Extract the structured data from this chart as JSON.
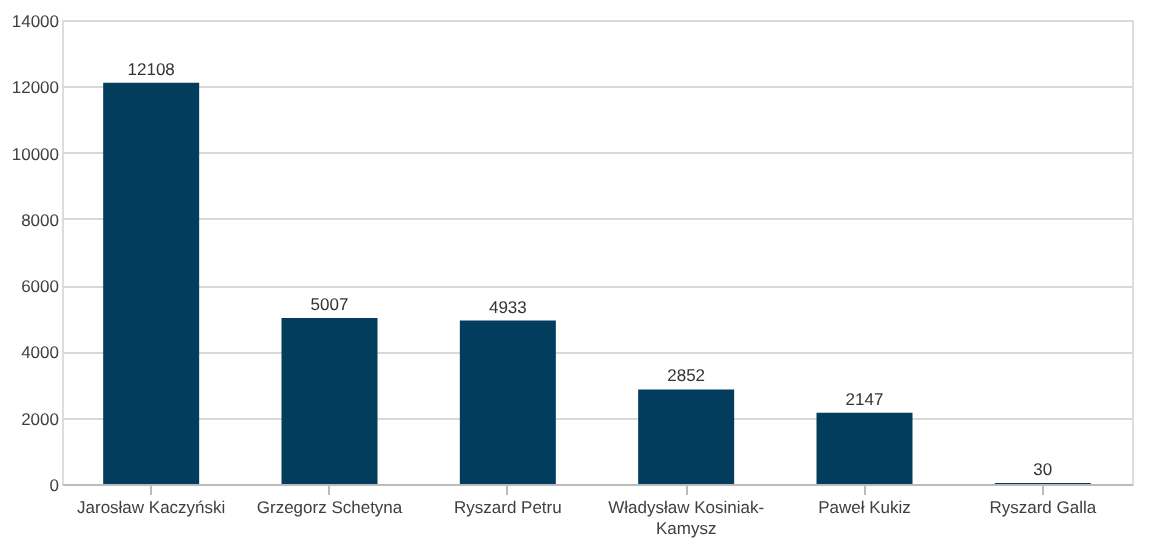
{
  "chart_data": {
    "type": "bar",
    "categories": [
      "Jarosław Kaczyński",
      "Grzegorz Schetyna",
      "Ryszard Petru",
      "Władysław Kosiniak-Kamysz",
      "Paweł Kukiz",
      "Ryszard Galla"
    ],
    "values": [
      12108,
      5007,
      4933,
      2852,
      2147,
      30
    ],
    "color": "#033d5e",
    "ylim": [
      0,
      14000
    ],
    "yticks": [
      0,
      2000,
      4000,
      6000,
      8000,
      10000,
      12000,
      14000
    ],
    "grid": "y",
    "data_labels": true
  }
}
